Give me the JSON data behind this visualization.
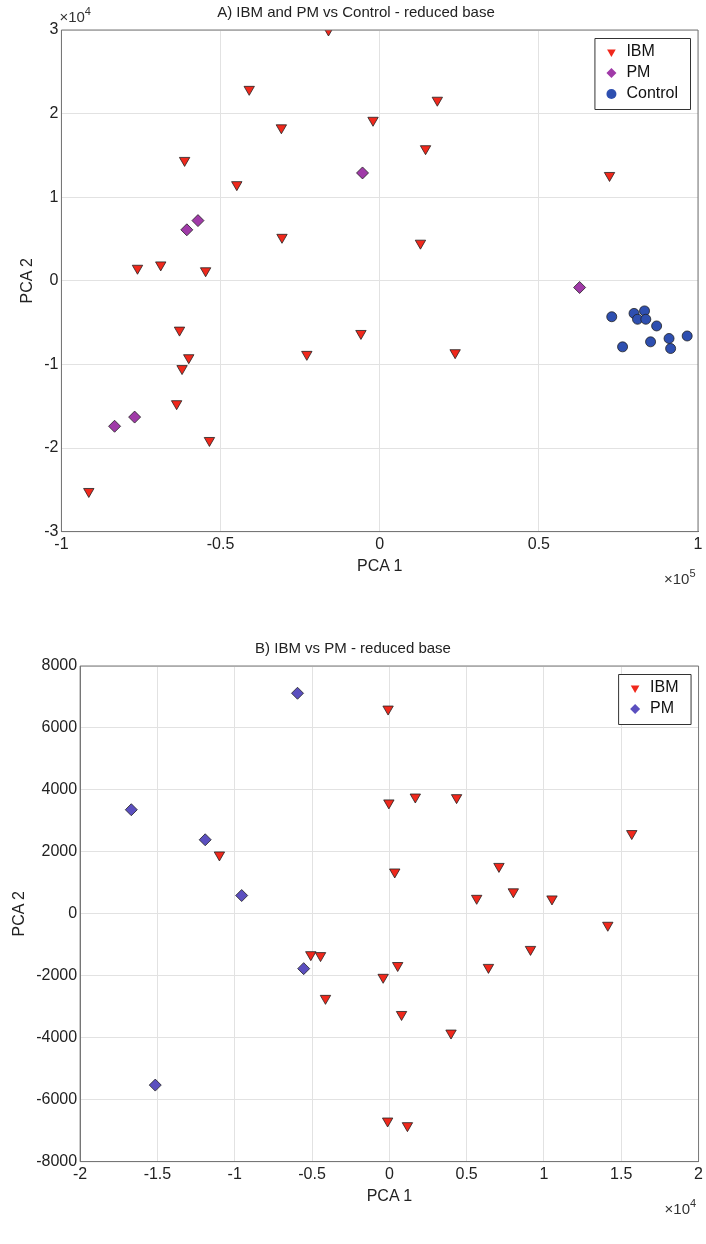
{
  "chart_data": [
    {
      "type": "scatter",
      "title": "A) IBM and PM vs Control - reduced base",
      "xlabel": "PCA 1",
      "ylabel": "PCA 2",
      "xlim": [
        -1,
        1
      ],
      "ylim": [
        -3,
        3
      ],
      "xticks": [
        -1,
        -0.5,
        0,
        0.5,
        1
      ],
      "yticks": [
        -3,
        -2,
        -1,
        0,
        1,
        2,
        3
      ],
      "annotations": [
        "×10$^{4}$",
        "×10$^{5}$"
      ],
      "grid": true,
      "legend": "top right",
      "series": [
        {
          "name": "IBM",
          "color": "#f0281c",
          "marker": "triangle",
          "x": [
            -0.914,
            -0.761,
            -0.688,
            -0.613,
            -0.547,
            -0.629,
            -0.6,
            -0.621,
            -0.638,
            -0.535,
            -0.41,
            -0.449,
            -0.309,
            -0.307,
            -0.161,
            -0.021,
            -0.059,
            -0.229,
            0.181,
            0.144,
            0.128,
            0.237,
            0.722
          ],
          "values": [
            -2.52,
            0.15,
            0.19,
            1.44,
            0.12,
            -0.59,
            -0.92,
            -1.05,
            -1.47,
            -1.91,
            2.29,
            1.15,
            1.83,
            0.52,
            3.0,
            1.92,
            -0.63,
            -0.88,
            2.16,
            1.58,
            0.45,
            -0.86,
            1.26
          ]
        },
        {
          "name": "PM",
          "color": "#a03aa8",
          "marker": "diamond",
          "x": [
            -0.833,
            -0.77,
            -0.606,
            -0.571,
            -0.054,
            0.628
          ],
          "values": [
            -1.74,
            -1.63,
            0.61,
            0.72,
            1.29,
            -0.08
          ]
        },
        {
          "name": "Control",
          "color": "#2e4fb0",
          "marker": "circle",
          "x": [
            0.729,
            0.763,
            0.799,
            0.81,
            0.832,
            0.836,
            0.87,
            0.851,
            0.909,
            0.914,
            0.966
          ],
          "values": [
            -0.43,
            -0.79,
            -0.39,
            -0.46,
            -0.36,
            -0.46,
            -0.54,
            -0.73,
            -0.69,
            -0.81,
            -0.66
          ]
        }
      ]
    },
    {
      "type": "scatter",
      "title": "B) IBM vs PM - reduced base",
      "xlabel": "PCA 1",
      "ylabel": "PCA 2",
      "xlim": [
        -2,
        2
      ],
      "ylim": [
        -8000,
        8000
      ],
      "xticks": [
        -2,
        -1.5,
        -1,
        -0.5,
        0,
        0.5,
        1,
        1.5,
        2
      ],
      "yticks": [
        -8000,
        -6000,
        -4000,
        -2000,
        0,
        2000,
        4000,
        6000,
        8000
      ],
      "annotations": [
        "×10$^{4}$"
      ],
      "grid": true,
      "legend": "top right",
      "series": [
        {
          "name": "IBM",
          "color": "#f0281c",
          "marker": "triangle",
          "x": [
            -1.099,
            -0.508,
            -0.445,
            -0.413,
            -0.04,
            -0.008,
            -0.003,
            0.168,
            0.435,
            1.568,
            0.035,
            0.709,
            0.565,
            0.802,
            1.052,
            1.413,
            0.913,
            0.054,
            0.641,
            0.079,
            0.399,
            -0.011,
            0.117
          ],
          "values": [
            1900,
            -1320,
            -1350,
            -2730,
            -2050,
            6610,
            3580,
            3770,
            3750,
            2590,
            1350,
            1530,
            500,
            710,
            480,
            -370,
            -1150,
            -1670,
            -1730,
            -3250,
            -3850,
            -6690,
            -6840
          ]
        },
        {
          "name": "PM",
          "color": "#5b4fbf",
          "marker": "diamond",
          "x": [
            -0.594,
            -1.669,
            -1.191,
            -0.955,
            -0.554,
            -1.514
          ],
          "values": [
            7120,
            3360,
            2390,
            590,
            -1770,
            -5530
          ]
        }
      ]
    }
  ]
}
